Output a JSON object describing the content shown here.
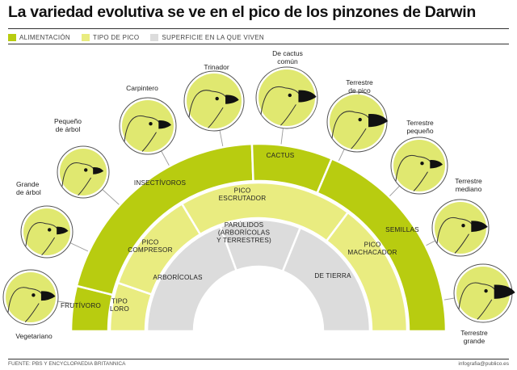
{
  "title": "La variedad evolutiva se ve en el pico de los pinzones de Darwin",
  "legend": [
    {
      "label": "ALIMENTACIÓN",
      "color": "#b8cc10"
    },
    {
      "label": "TIPO DE PICO",
      "color": "#e9ec80"
    },
    {
      "label": "SUPERFICIE EN LA QUE VIVEN",
      "color": "#dcdcdc"
    }
  ],
  "colors": {
    "green": "#b8cc10",
    "yellow": "#e9ec80",
    "gray": "#dcdcdc",
    "bird": "#e0e870",
    "beak": "#111111"
  },
  "rings": {
    "food": [
      "FRUTÍVORO",
      "INSECTÍVOROS",
      "CACTUS",
      "SEMILLAS"
    ],
    "beak": [
      "TIPO LORO",
      "PICO COMPRESOR",
      "PICO ESCRUTADOR",
      "PICO MACHACADOR"
    ],
    "surface": [
      "ARBORÍCOLAS",
      "PARÚLIDOS (ARBORÍCOLAS Y TERRESTRES)",
      "DE TIERRA"
    ]
  },
  "finches": [
    "Vegetariano",
    "Grande de árbol",
    "Pequeño de árbol",
    "Carpintero",
    "Trinador",
    "De cactus común",
    "Terrestre de pico",
    "Terrestre pequeño",
    "Terrestre mediano",
    "Terrestre grande"
  ],
  "source": "FUENTE: PBS Y ENCYCLOPAEDIA BRITANNICA",
  "credit": "infografia@publico.es"
}
